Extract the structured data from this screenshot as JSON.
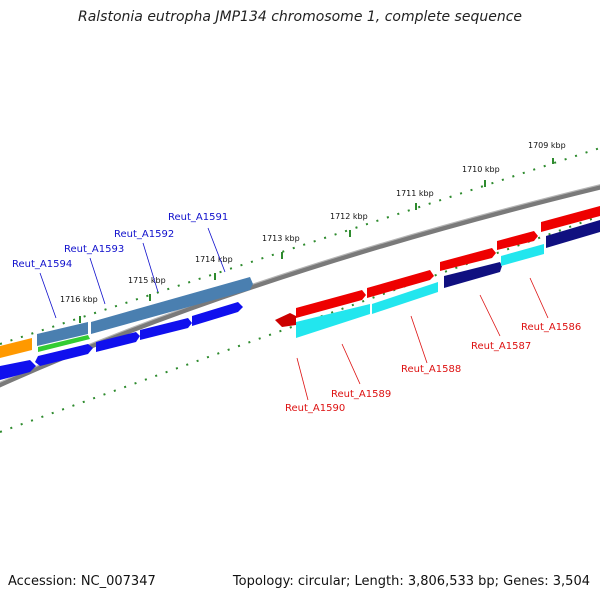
{
  "title": "Ralstonia eutropha JMP134 chromosome 1, complete sequence",
  "footer": {
    "accession": "Accession: NC_007347",
    "summary": "Topology: circular; Length: 3,806,533 bp; Genes: 3,504"
  },
  "kbp_labels": [
    "1709 kbp",
    "1710 kbp",
    "1711 kbp",
    "1712 kbp",
    "1713 kbp",
    "1714 kbp",
    "1715 kbp",
    "1716 kbp"
  ],
  "genes_forward": [
    "Reut_A1591",
    "Reut_A1592",
    "Reut_A1593",
    "Reut_A1594"
  ],
  "genes_reverse": [
    "Reut_A1586",
    "Reut_A1587",
    "Reut_A1588",
    "Reut_A1589",
    "Reut_A1590"
  ],
  "colors": {
    "backbone": "#7a7a7a",
    "tick": "#2e8b2e",
    "label_forward": "#1010cc",
    "label_reverse": "#dd1111",
    "red": "#ee0000",
    "cyan": "#22e6ee",
    "navy": "#101080",
    "blue": "#1010ee",
    "steel": "#4a7fb0",
    "green": "#33cc33",
    "orange": "#ff9900"
  }
}
